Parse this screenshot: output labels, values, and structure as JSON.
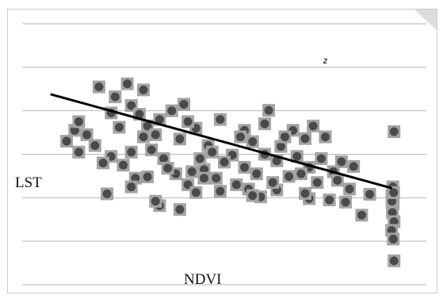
{
  "chart_data": {
    "type": "scatter",
    "xlabel": "NDVI",
    "ylabel": "LST",
    "annotation": "2",
    "grid": true,
    "gridline_color": "#b7b7b7",
    "point_color": "#4a4a4a",
    "point_halo_color": "#a3a3a3",
    "trend_color": "#000000",
    "xlim": [
      0,
      1
    ],
    "ylim": [
      0,
      6
    ],
    "grid_y": [
      0,
      1,
      2,
      3,
      4,
      5,
      6
    ],
    "trend": {
      "x": [
        0.07,
        0.915
      ],
      "y": [
        4.38,
        2.22
      ]
    },
    "points": [
      [
        0.11,
        3.3
      ],
      [
        0.21,
        2.09
      ],
      [
        0.34,
        1.82
      ],
      [
        0.22,
        3.95
      ],
      [
        0.27,
        4.12
      ],
      [
        0.4,
        4.15
      ],
      [
        0.49,
        3.8
      ],
      [
        0.61,
        4.01
      ],
      [
        0.55,
        3.55
      ],
      [
        0.52,
        2.98
      ],
      [
        0.57,
        3.29
      ],
      [
        0.6,
        3.0
      ],
      [
        0.46,
        3.2
      ],
      [
        0.48,
        2.45
      ],
      [
        0.41,
        2.3
      ],
      [
        0.38,
        2.55
      ],
      [
        0.35,
        2.9
      ],
      [
        0.32,
        3.1
      ],
      [
        0.45,
        2.65
      ],
      [
        0.53,
        2.3
      ],
      [
        0.56,
        2.2
      ],
      [
        0.59,
        2.02
      ],
      [
        0.63,
        2.18
      ],
      [
        0.66,
        2.49
      ],
      [
        0.64,
        3.18
      ],
      [
        0.67,
        3.55
      ],
      [
        0.7,
        3.36
      ],
      [
        0.72,
        3.65
      ],
      [
        0.68,
        2.95
      ],
      [
        0.74,
        2.9
      ],
      [
        0.71,
        2.7
      ],
      [
        0.69,
        2.55
      ],
      [
        0.73,
        2.35
      ],
      [
        0.71,
        1.98
      ],
      [
        0.76,
        1.95
      ],
      [
        0.81,
        2.2
      ],
      [
        0.75,
        3.4
      ],
      [
        0.79,
        2.83
      ],
      [
        0.82,
        2.72
      ],
      [
        0.86,
        2.08
      ],
      [
        0.8,
        1.9
      ],
      [
        0.33,
        1.92
      ],
      [
        0.31,
        2.48
      ],
      [
        0.25,
        2.75
      ],
      [
        0.28,
        2.45
      ],
      [
        0.39,
        1.73
      ],
      [
        0.43,
        2.12
      ],
      [
        0.3,
        3.4
      ],
      [
        0.92,
        3.52
      ],
      [
        0.917,
        2.25
      ],
      [
        0.915,
        2.05
      ],
      [
        0.918,
        1.86
      ],
      [
        0.916,
        1.66
      ],
      [
        0.92,
        1.45
      ],
      [
        0.914,
        1.25
      ],
      [
        0.918,
        1.05
      ],
      [
        0.92,
        0.55
      ],
      [
        0.915,
        1.92
      ],
      [
        0.919,
        2.12
      ],
      [
        0.55,
        2.7
      ],
      [
        0.58,
        2.55
      ],
      [
        0.62,
        2.35
      ],
      [
        0.44,
        2.9
      ],
      [
        0.5,
        2.82
      ],
      [
        0.36,
        2.68
      ],
      [
        0.42,
        2.6
      ],
      [
        0.47,
        3.05
      ],
      [
        0.54,
        3.4
      ],
      [
        0.6,
        3.7
      ],
      [
        0.65,
        3.4
      ],
      [
        0.23,
        4.32
      ],
      [
        0.19,
        4.55
      ],
      [
        0.26,
        4.62
      ],
      [
        0.3,
        4.48
      ],
      [
        0.24,
        3.62
      ],
      [
        0.16,
        3.45
      ],
      [
        0.18,
        3.2
      ],
      [
        0.34,
        3.8
      ],
      [
        0.37,
        4.0
      ],
      [
        0.43,
        3.6
      ],
      [
        0.39,
        3.35
      ],
      [
        0.27,
        3.05
      ],
      [
        0.22,
        2.95
      ],
      [
        0.14,
        3.05
      ],
      [
        0.13,
        3.55
      ],
      [
        0.2,
        2.8
      ],
      [
        0.7,
        2.1
      ],
      [
        0.77,
        2.6
      ],
      [
        0.63,
        2.85
      ],
      [
        0.84,
        1.6
      ],
      [
        0.78,
        2.4
      ],
      [
        0.57,
        2.05
      ],
      [
        0.49,
        2.15
      ],
      [
        0.45,
        2.45
      ],
      [
        0.27,
        2.25
      ],
      [
        0.14,
        3.75
      ],
      [
        0.31,
        3.65
      ],
      [
        0.29,
        3.92
      ],
      [
        0.33,
        3.45
      ],
      [
        0.41,
        3.75
      ]
    ]
  }
}
